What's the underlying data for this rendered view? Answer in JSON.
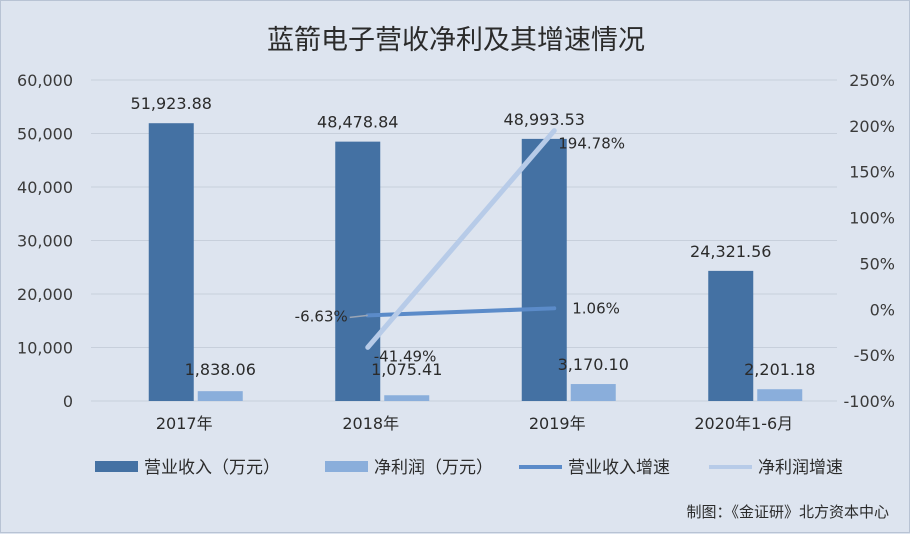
{
  "chart_data": {
    "type": "bar",
    "title": "蓝箭电子营收净利及其增速情况",
    "categories": [
      "2017年",
      "2018年",
      "2019年",
      "2020年1-6月"
    ],
    "bar_series": [
      {
        "name": "营业收入（万元）",
        "values": [
          51923.88,
          48478.84,
          48993.53,
          24321.56
        ],
        "labels": [
          "51,923.88",
          "48,478.84",
          "48,993.53",
          "24,321.56"
        ],
        "color": "#4471a3"
      },
      {
        "name": "净利润（万元）",
        "values": [
          1838.06,
          1075.41,
          3170.1,
          2201.18
        ],
        "labels": [
          "1,838.06",
          "1,075.41",
          "3,170.10",
          "2,201.18"
        ],
        "color": "#8aaedb"
      }
    ],
    "line_series": [
      {
        "name": "营业收入增速",
        "values": [
          null,
          -6.63,
          1.06,
          null
        ],
        "labels": [
          "",
          "-6.63%",
          "1.06%",
          ""
        ],
        "color": "#5b8bc9"
      },
      {
        "name": "净利润增速",
        "values": [
          null,
          -41.49,
          194.78,
          null
        ],
        "labels": [
          "",
          "-41.49%",
          "194.78%",
          ""
        ],
        "color": "#b7cbe8"
      }
    ],
    "y_left": {
      "ticks": [
        0,
        10000,
        20000,
        30000,
        40000,
        50000,
        60000
      ],
      "tick_labels": [
        "0",
        "10,000",
        "20,000",
        "30,000",
        "40,000",
        "50,000",
        "60,000"
      ],
      "ylim": [
        0,
        60000
      ]
    },
    "y_right": {
      "ticks": [
        -100,
        -50,
        0,
        50,
        100,
        150,
        200,
        250
      ],
      "tick_labels": [
        "-100%",
        "-50%",
        "0%",
        "50%",
        "100%",
        "150%",
        "200%",
        "250%"
      ],
      "ylim": [
        -100,
        250
      ]
    },
    "grid": true,
    "legend_position": "bottom",
    "source_note": "制图：《金证研》北方资本中心"
  }
}
